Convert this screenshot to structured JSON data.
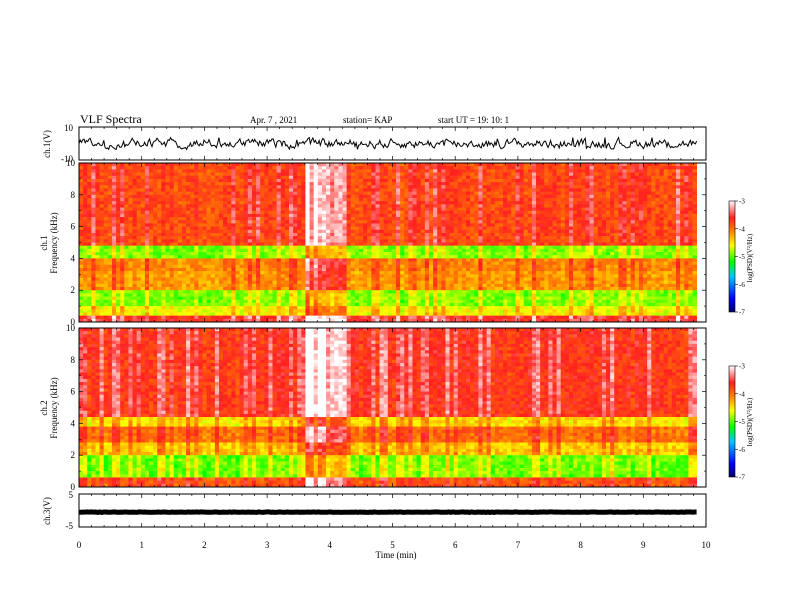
{
  "header": {
    "title": "VLF Spectra",
    "date": "Apr. 7 , 2021",
    "station": "station= KAP",
    "start": "start UT =  19: 10: 1"
  },
  "colors": {
    "waveform": "#000000",
    "colormap": [
      "#000066",
      "#0000ff",
      "#00c8ff",
      "#00ff00",
      "#ffff00",
      "#ff8800",
      "#ff2020",
      "#ffffff"
    ]
  },
  "chart_data": [
    {
      "type": "line",
      "panel": "ch1-waveform",
      "ylabel": "ch.1(V)",
      "ylim": [
        -10,
        10
      ],
      "yticks": [
        "10",
        "-10"
      ],
      "xlim": [
        0,
        10
      ],
      "description_values": {
        "mean": 0,
        "amplitude_range": [
          -3,
          3
        ]
      }
    },
    {
      "type": "heatmap",
      "panel": "ch1-spectrogram",
      "ylabel": "ch.1\nFrequency (kHz)",
      "ylabel_lines": [
        "ch.1",
        "Frequency (kHz)"
      ],
      "ylim": [
        0,
        10
      ],
      "yticks": [
        "0",
        "2",
        "4",
        "6",
        "8",
        "10"
      ],
      "xlim": [
        0,
        9.85
      ],
      "colorbar": {
        "label": "log(PSD)(V²/Hz)",
        "range": [
          -7,
          -3
        ],
        "ticks": [
          "-3",
          "-4",
          "-5",
          "-6",
          "-7"
        ]
      },
      "bands_log_psd": [
        {
          "freq": [
            0,
            0.4
          ],
          "level": -3.6
        },
        {
          "freq": [
            0.4,
            1.0
          ],
          "level": -4.6
        },
        {
          "freq": [
            1.0,
            2.0
          ],
          "level": -4.9
        },
        {
          "freq": [
            2.0,
            3.2
          ],
          "level": -4.2
        },
        {
          "freq": [
            3.2,
            4.1
          ],
          "level": -4.1
        },
        {
          "freq": [
            4.1,
            4.9
          ],
          "level": -4.9
        },
        {
          "freq": [
            4.9,
            10.0
          ],
          "level": -3.8
        }
      ],
      "event_interval_min": [
        3.6,
        4.25
      ]
    },
    {
      "type": "heatmap",
      "panel": "ch2-spectrogram",
      "ylabel": "ch.2\nFrequency (kHz)",
      "ylabel_lines": [
        "ch.2",
        "Frequency (kHz)"
      ],
      "ylim": [
        0,
        10
      ],
      "yticks": [
        "0",
        "2",
        "4",
        "6",
        "8",
        "10"
      ],
      "xlim": [
        0,
        9.85
      ],
      "colorbar": {
        "label": "log(PSD)(V²/Hz)",
        "range": [
          -7,
          -3
        ],
        "ticks": [
          "-3",
          "-4",
          "-5",
          "-6",
          "-7"
        ]
      },
      "bands_log_psd": [
        {
          "freq": [
            0,
            0.6
          ],
          "level": -3.9
        },
        {
          "freq": [
            0.6,
            2.0
          ],
          "level": -4.95
        },
        {
          "freq": [
            2.0,
            2.8
          ],
          "level": -4.4
        },
        {
          "freq": [
            2.8,
            3.9
          ],
          "level": -4.0
        },
        {
          "freq": [
            3.9,
            4.5
          ],
          "level": -4.5
        },
        {
          "freq": [
            4.5,
            10.0
          ],
          "level": -3.7
        }
      ],
      "event_interval_min": [
        3.6,
        4.25
      ]
    },
    {
      "type": "line",
      "panel": "ch3-waveform",
      "ylabel": "ch.3(V)",
      "ylim": [
        -5,
        5
      ],
      "yticks": [
        "5",
        "-5"
      ],
      "xlim": [
        0,
        10
      ],
      "description_values": {
        "mean": -0.5,
        "amplitude_range": [
          -0.8,
          -0.2
        ]
      }
    }
  ],
  "xaxis": {
    "label": "Time (min)",
    "ticks": [
      "0",
      "1",
      "2",
      "3",
      "4",
      "5",
      "6",
      "7",
      "8",
      "9",
      "10"
    ]
  }
}
